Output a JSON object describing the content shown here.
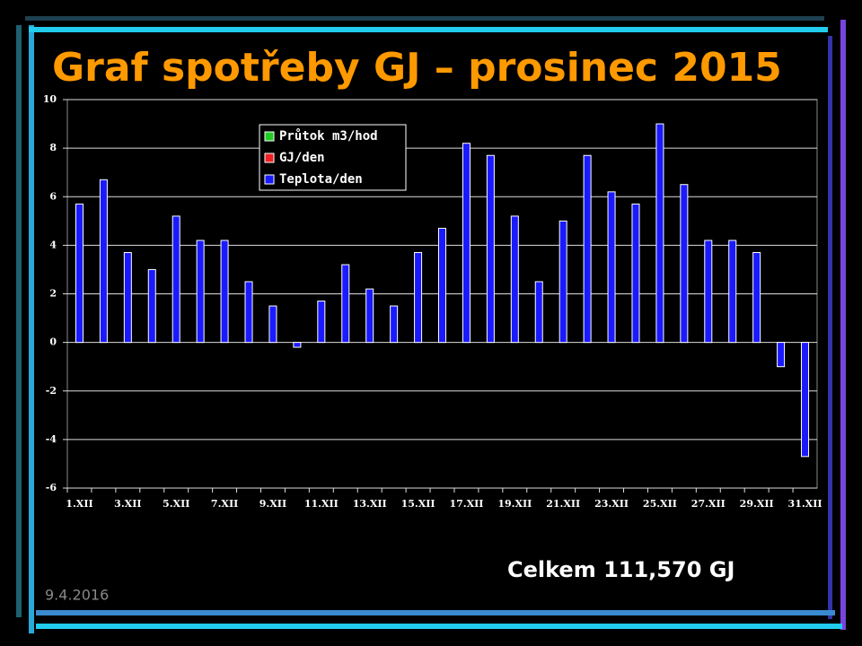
{
  "title": "Graf spotřeby GJ – prosinec 2015",
  "total": "Celkem 111,570 GJ",
  "date": "9.4.2016",
  "chart_data": {
    "type": "bar",
    "categories": [
      "1.XII",
      null,
      "3.XII",
      null,
      "5.XII",
      null,
      "7.XII",
      null,
      "9.XII",
      null,
      "11.XII",
      null,
      "13.XII",
      null,
      "15.XII",
      null,
      "17.XII",
      null,
      "19.XII",
      null,
      "21.XII",
      null,
      "23.XII",
      null,
      "25.XII",
      null,
      "27.XII",
      null,
      "29.XII",
      null,
      "31.XII"
    ],
    "series": [
      {
        "name": "Průtok m3/hod",
        "color": "#22cc22",
        "values": [
          null,
          null,
          null,
          null,
          null,
          null,
          null,
          null,
          null,
          null,
          null,
          null,
          null,
          null,
          null,
          null,
          null,
          null,
          null,
          null,
          null,
          null,
          null,
          null,
          null,
          null,
          null,
          null,
          null,
          null,
          null
        ]
      },
      {
        "name": "GJ/den",
        "color": "#ee2222",
        "values": [
          null,
          null,
          null,
          null,
          null,
          null,
          null,
          null,
          null,
          null,
          null,
          null,
          null,
          null,
          null,
          null,
          null,
          null,
          null,
          null,
          null,
          null,
          null,
          null,
          null,
          null,
          null,
          null,
          null,
          null,
          null
        ]
      },
      {
        "name": "Teplota/den",
        "color": "#1a1aff",
        "values": [
          5.7,
          6.7,
          3.7,
          3.0,
          5.2,
          4.2,
          4.2,
          2.5,
          1.5,
          -0.2,
          1.7,
          3.2,
          2.2,
          1.5,
          3.7,
          4.7,
          8.2,
          7.7,
          5.2,
          2.5,
          5.0,
          7.7,
          6.2,
          5.7,
          9.0,
          6.5,
          4.2,
          4.2,
          3.7,
          -1.0,
          -4.7
        ]
      }
    ],
    "ylim": [
      -6,
      10
    ],
    "yticks": [
      -6,
      -4,
      -2,
      0,
      2,
      4,
      6,
      8,
      10
    ],
    "grid": true
  }
}
